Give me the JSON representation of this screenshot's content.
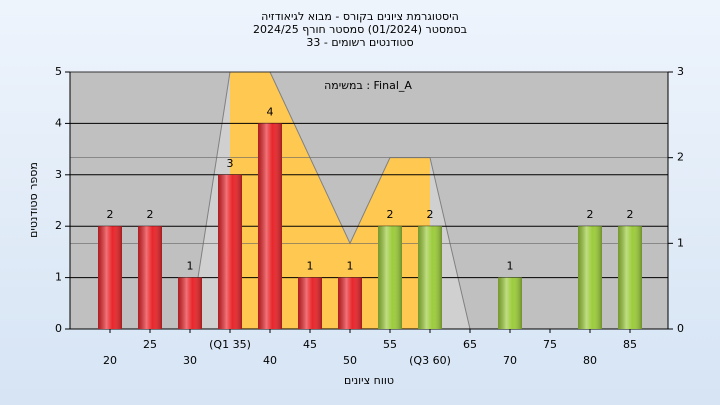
{
  "chart_data": {
    "type": "bar",
    "title": [
      "היסטוגרמת ציונים בקורס - מבוא לגיאודזיה",
      "בסמסטר  (01/2024)  סמסטר חורף 2024/25",
      "סטודנטים רשומים - 33"
    ],
    "annotation": "במשימה : Final_A",
    "xlabel": "טווח ציונים",
    "ylabel": "מספר סטודנטים",
    "categories": [
      "20",
      "25",
      "30",
      "(Q1 35)",
      "40",
      "45",
      "50",
      "55",
      "(Q3 60)",
      "65",
      "70",
      "75",
      "80",
      "85"
    ],
    "values": [
      2,
      2,
      1,
      3,
      4,
      1,
      1,
      2,
      2,
      0,
      1,
      0,
      2,
      2
    ],
    "bar_colors": [
      "#e8262b",
      "#e8262b",
      "#e8262b",
      "#e8262b",
      "#e8262b",
      "#e8262b",
      "#e8262b",
      "#9ccc3c",
      "#9ccc3c",
      "#9ccc3c",
      "#9ccc3c",
      "#9ccc3c",
      "#9ccc3c",
      "#9ccc3c"
    ],
    "line": {
      "axis": "y2",
      "color": "#808080",
      "fill": "#ffc850",
      "outer_fill": "#d0d0d0",
      "values": [
        null,
        null,
        0,
        3,
        3,
        2,
        1,
        2,
        2,
        0,
        null,
        null,
        null,
        null
      ]
    },
    "ylim": [
      0,
      5
    ],
    "yticks": [
      0,
      1,
      2,
      3,
      4,
      5
    ],
    "y2lim": [
      0,
      3
    ],
    "y2ticks": [
      0,
      1,
      2,
      3
    ],
    "grid": true
  }
}
